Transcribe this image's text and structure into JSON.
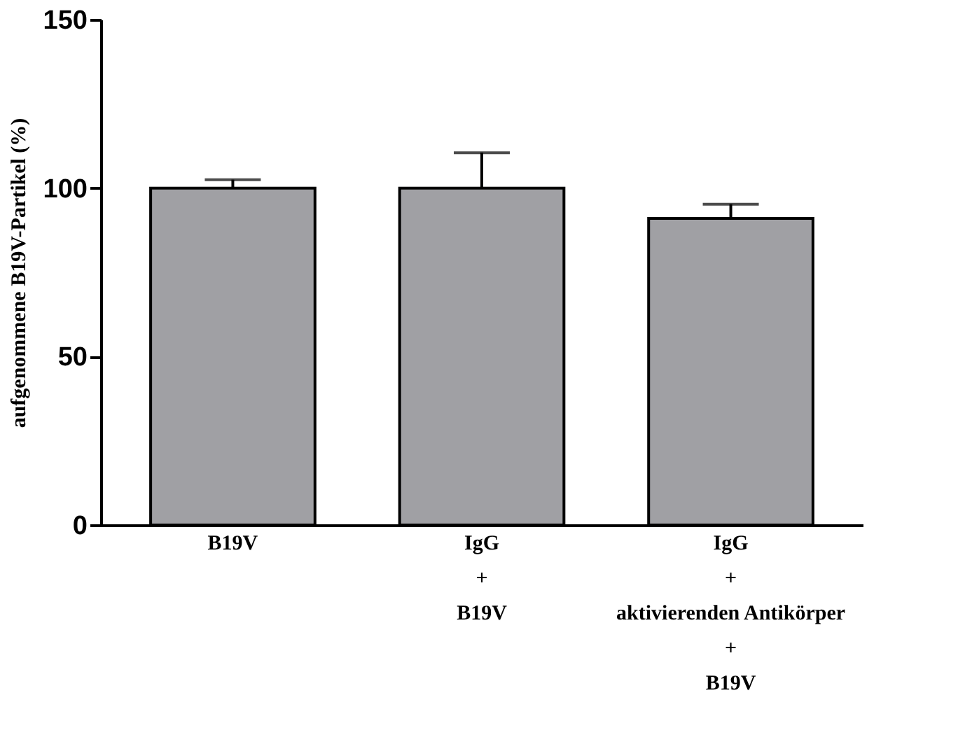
{
  "chart_data": {
    "type": "bar",
    "ylabel": "aufgenommene B19V-Partikel (%)",
    "categories": [
      "B19V",
      "IgG\n+\nB19V",
      "IgG\n+\naktivierenden Antikörper\n+\nB19V"
    ],
    "values": [
      100,
      100,
      91
    ],
    "errors": [
      [
        100,
        102.5
      ],
      [
        100,
        110.5
      ],
      [
        91,
        95.2
      ]
    ],
    "color": "#a0a0a4",
    "ylim": [
      0,
      150
    ],
    "yticks": [
      0,
      50,
      100,
      150
    ],
    "grid": false
  }
}
